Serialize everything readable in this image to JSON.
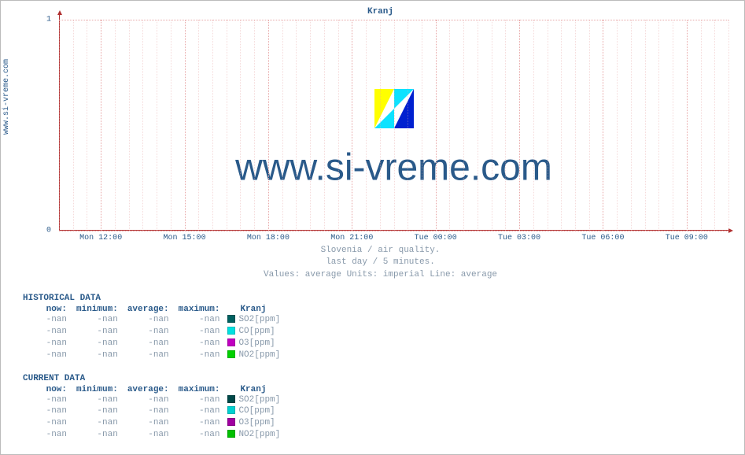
{
  "chart": {
    "title": "Kranj",
    "y_axis_side_label": "www.si-vreme.com",
    "watermark": "www.si-vreme.com",
    "type": "line",
    "background_color": "#ffffff",
    "grid_color": "#e8a8a8",
    "axis_color": "#b03030",
    "text_color": "#2a5a8a",
    "muted_text_color": "#8899aa",
    "ylim": [
      0,
      1
    ],
    "yticks": [
      0,
      1
    ],
    "xticks": [
      "Mon 12:00",
      "Mon 15:00",
      "Mon 18:00",
      "Mon 21:00",
      "Tue 00:00",
      "Tue 03:00",
      "Tue 06:00",
      "Tue 09:00"
    ],
    "logo_colors": {
      "yellow": "#ffff00",
      "cyan": "#00e0ff",
      "blue": "#0020d0"
    },
    "subtext": [
      "Slovenia / air quality.",
      "last day / 5 minutes.",
      "Values: average  Units: imperial  Line: average"
    ]
  },
  "historical": {
    "title": "HISTORICAL DATA",
    "columns": [
      "now:",
      "minimum:",
      "average:",
      "maximum:",
      "Kranj"
    ],
    "rows": [
      {
        "values": [
          "-nan",
          "-nan",
          "-nan",
          "-nan"
        ],
        "label": "SO2[ppm]",
        "color": "#006060"
      },
      {
        "values": [
          "-nan",
          "-nan",
          "-nan",
          "-nan"
        ],
        "label": "CO[ppm]",
        "color": "#00e0e0"
      },
      {
        "values": [
          "-nan",
          "-nan",
          "-nan",
          "-nan"
        ],
        "label": "O3[ppm]",
        "color": "#c000c0"
      },
      {
        "values": [
          "-nan",
          "-nan",
          "-nan",
          "-nan"
        ],
        "label": "NO2[ppm]",
        "color": "#00d000"
      }
    ]
  },
  "current": {
    "title": "CURRENT DATA",
    "columns": [
      "now:",
      "minimum:",
      "average:",
      "maximum:",
      "Kranj"
    ],
    "rows": [
      {
        "values": [
          "-nan",
          "-nan",
          "-nan",
          "-nan"
        ],
        "label": "SO2[ppm]",
        "color": "#004848"
      },
      {
        "values": [
          "-nan",
          "-nan",
          "-nan",
          "-nan"
        ],
        "label": "CO[ppm]",
        "color": "#00d0d0"
      },
      {
        "values": [
          "-nan",
          "-nan",
          "-nan",
          "-nan"
        ],
        "label": "O3[ppm]",
        "color": "#a000a0"
      },
      {
        "values": [
          "-nan",
          "-nan",
          "-nan",
          "-nan"
        ],
        "label": "NO2[ppm]",
        "color": "#00c000"
      }
    ]
  }
}
